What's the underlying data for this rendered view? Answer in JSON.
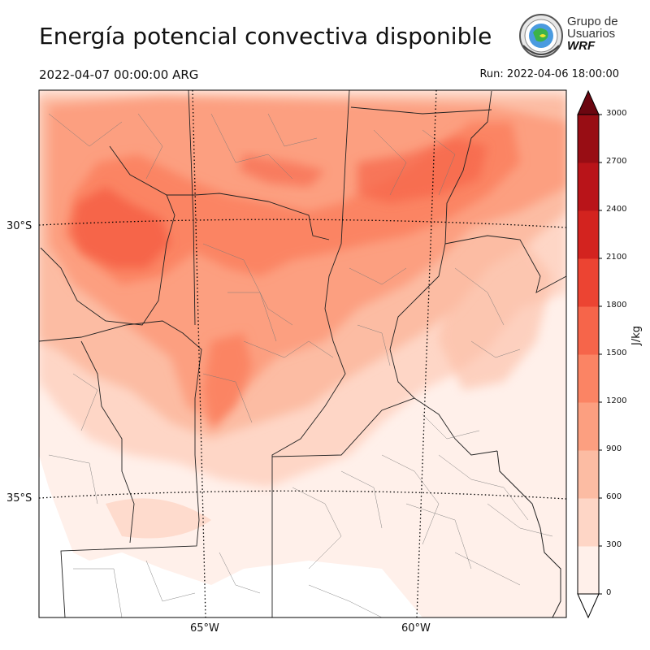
{
  "header": {
    "title": "Energía potencial convectiva disponible",
    "valid_time": "2022-04-07 00:00:00 ARG",
    "run_time": "Run: 2022-04-06 18:00:00"
  },
  "logo": {
    "line1": "Grupo de",
    "line2": "Usuarios",
    "line3": "WRF"
  },
  "map": {
    "lat_labels": [
      "30°S",
      "35°S"
    ],
    "lon_labels": [
      "65°W",
      "60°W"
    ]
  },
  "colorbar": {
    "unit": "J/kg",
    "ticks": [
      "0",
      "300",
      "600",
      "900",
      "1200",
      "1500",
      "1800",
      "2100",
      "2400",
      "2700",
      "3000"
    ],
    "colors": [
      "#fff0ea",
      "#fed6c6",
      "#fcbca3",
      "#fc9f80",
      "#fb8464",
      "#f6654a",
      "#ec4432",
      "#d3231f",
      "#b91419",
      "#980d14"
    ],
    "extend_color": "#6b0610"
  }
}
